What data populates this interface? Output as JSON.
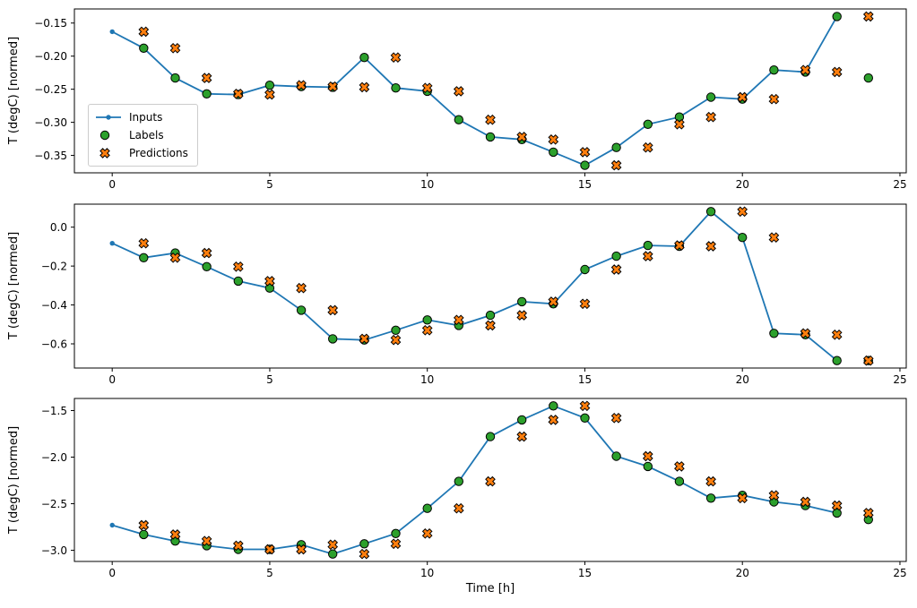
{
  "figure": {
    "xlabel": "Time [h]",
    "legend": {
      "position": "subplot-1 lower left",
      "items": [
        {
          "label": "Inputs",
          "marker": "line-with-dot"
        },
        {
          "label": "Labels",
          "marker": "circle"
        },
        {
          "label": "Predictions",
          "marker": "X"
        }
      ]
    },
    "colors": {
      "inputs": "#1f77b4",
      "labels": "#2ca02c",
      "predictions": "#ff7f0e",
      "edge": "#000000"
    }
  },
  "chart_data": [
    {
      "type": "line+scatter",
      "ylabel": "T (degC) [normed]",
      "xlim": [
        -1.2,
        25.2
      ],
      "ylim": [
        -0.3763,
        -0.1287
      ],
      "x_ticks": [
        0,
        5,
        10,
        15,
        20,
        25
      ],
      "x_tick_labels": [
        "0",
        "5",
        "10",
        "15",
        "20",
        "25"
      ],
      "y_ticks": [
        -0.15,
        -0.2,
        -0.25,
        -0.3,
        -0.35
      ],
      "y_tick_labels": [
        "−0.15",
        "−0.20",
        "−0.25",
        "−0.30",
        "−0.35"
      ],
      "grid": false,
      "series": [
        {
          "name": "Inputs",
          "marker": "point",
          "x": [
            0,
            1,
            2,
            3,
            4,
            5,
            6,
            7,
            8,
            9,
            10,
            11,
            12,
            13,
            14,
            15,
            16,
            17,
            18,
            19,
            20,
            21,
            22,
            23
          ],
          "y": [
            -0.163,
            -0.188,
            -0.233,
            -0.257,
            -0.258,
            -0.244,
            -0.246,
            -0.247,
            -0.202,
            -0.248,
            -0.253,
            -0.296,
            -0.322,
            -0.326,
            -0.345,
            -0.365,
            -0.338,
            -0.303,
            -0.292,
            -0.262,
            -0.265,
            -0.221,
            -0.224,
            -0.14
          ]
        },
        {
          "name": "Labels",
          "marker": "circle",
          "x": [
            1,
            2,
            3,
            4,
            5,
            6,
            7,
            8,
            9,
            10,
            11,
            12,
            13,
            14,
            15,
            16,
            17,
            18,
            19,
            20,
            21,
            22,
            23,
            24
          ],
          "y": [
            -0.188,
            -0.233,
            -0.257,
            -0.258,
            -0.244,
            -0.246,
            -0.247,
            -0.202,
            -0.248,
            -0.253,
            -0.296,
            -0.322,
            -0.326,
            -0.345,
            -0.365,
            -0.338,
            -0.303,
            -0.292,
            -0.262,
            -0.265,
            -0.221,
            -0.224,
            -0.14,
            -0.233
          ]
        },
        {
          "name": "Predictions",
          "marker": "X",
          "x": [
            1,
            2,
            3,
            4,
            5,
            6,
            7,
            8,
            9,
            10,
            11,
            12,
            13,
            14,
            15,
            16,
            17,
            18,
            19,
            20,
            21,
            22,
            23,
            24
          ],
          "y": [
            -0.163,
            -0.188,
            -0.233,
            -0.257,
            -0.258,
            -0.244,
            -0.246,
            -0.247,
            -0.202,
            -0.248,
            -0.253,
            -0.296,
            -0.322,
            -0.326,
            -0.345,
            -0.365,
            -0.338,
            -0.303,
            -0.292,
            -0.262,
            -0.265,
            -0.221,
            -0.224,
            -0.14
          ]
        }
      ]
    },
    {
      "type": "line+scatter",
      "ylabel": "T (degC) [normed]",
      "xlim": [
        -1.2,
        25.2
      ],
      "ylim": [
        -0.7243,
        0.1183
      ],
      "x_ticks": [
        0,
        5,
        10,
        15,
        20,
        25
      ],
      "x_tick_labels": [
        "0",
        "5",
        "10",
        "15",
        "20",
        "25"
      ],
      "y_ticks": [
        0.0,
        -0.2,
        -0.4,
        -0.6
      ],
      "y_tick_labels": [
        "0.0",
        "−0.2",
        "−0.4",
        "−0.6"
      ],
      "grid": false,
      "series": [
        {
          "name": "Inputs",
          "marker": "point",
          "x": [
            0,
            1,
            2,
            3,
            4,
            5,
            6,
            7,
            8,
            9,
            10,
            11,
            12,
            13,
            14,
            15,
            16,
            17,
            18,
            19,
            20,
            21,
            22,
            23
          ],
          "y": [
            -0.083,
            -0.157,
            -0.133,
            -0.203,
            -0.277,
            -0.313,
            -0.427,
            -0.574,
            -0.58,
            -0.53,
            -0.477,
            -0.505,
            -0.453,
            -0.383,
            -0.394,
            -0.218,
            -0.149,
            -0.094,
            -0.098,
            0.08,
            -0.053,
            -0.546,
            -0.553,
            -0.686
          ]
        },
        {
          "name": "Labels",
          "marker": "circle",
          "x": [
            1,
            2,
            3,
            4,
            5,
            6,
            7,
            8,
            9,
            10,
            11,
            12,
            13,
            14,
            15,
            16,
            17,
            18,
            19,
            20,
            21,
            22,
            23,
            24
          ],
          "y": [
            -0.157,
            -0.133,
            -0.203,
            -0.277,
            -0.313,
            -0.427,
            -0.574,
            -0.58,
            -0.53,
            -0.477,
            -0.505,
            -0.453,
            -0.383,
            -0.394,
            -0.218,
            -0.149,
            -0.094,
            -0.098,
            0.08,
            -0.053,
            -0.546,
            -0.553,
            -0.686,
            -0.686
          ]
        },
        {
          "name": "Predictions",
          "marker": "X",
          "x": [
            1,
            2,
            3,
            4,
            5,
            6,
            7,
            8,
            9,
            10,
            11,
            12,
            13,
            14,
            15,
            16,
            17,
            18,
            19,
            20,
            21,
            22,
            23,
            24
          ],
          "y": [
            -0.083,
            -0.157,
            -0.133,
            -0.203,
            -0.277,
            -0.313,
            -0.427,
            -0.574,
            -0.58,
            -0.53,
            -0.477,
            -0.505,
            -0.453,
            -0.383,
            -0.394,
            -0.218,
            -0.149,
            -0.094,
            -0.098,
            0.08,
            -0.053,
            -0.546,
            -0.553,
            -0.686
          ]
        }
      ]
    },
    {
      "type": "line+scatter",
      "ylabel": "T (degC) [normed]",
      "xlabel": "Time [h]",
      "xlim": [
        -1.2,
        25.2
      ],
      "ylim": [
        -3.1195,
        -1.3705
      ],
      "x_ticks": [
        0,
        5,
        10,
        15,
        20,
        25
      ],
      "x_tick_labels": [
        "0",
        "5",
        "10",
        "15",
        "20",
        "25"
      ],
      "y_ticks": [
        -1.5,
        -2.0,
        -2.5,
        -3.0
      ],
      "y_tick_labels": [
        "−1.5",
        "−2.0",
        "−2.5",
        "−3.0"
      ],
      "grid": false,
      "series": [
        {
          "name": "Inputs",
          "marker": "point",
          "x": [
            0,
            1,
            2,
            3,
            4,
            5,
            6,
            7,
            8,
            9,
            10,
            11,
            12,
            13,
            14,
            15,
            16,
            17,
            18,
            19,
            20,
            21,
            22,
            23
          ],
          "y": [
            -2.73,
            -2.83,
            -2.9,
            -2.95,
            -2.99,
            -2.99,
            -2.94,
            -3.04,
            -2.93,
            -2.82,
            -2.55,
            -2.26,
            -1.78,
            -1.6,
            -1.45,
            -1.58,
            -1.99,
            -2.1,
            -2.26,
            -2.44,
            -2.41,
            -2.48,
            -2.52,
            -2.6
          ]
        },
        {
          "name": "Labels",
          "marker": "circle",
          "x": [
            1,
            2,
            3,
            4,
            5,
            6,
            7,
            8,
            9,
            10,
            11,
            12,
            13,
            14,
            15,
            16,
            17,
            18,
            19,
            20,
            21,
            22,
            23,
            24
          ],
          "y": [
            -2.83,
            -2.9,
            -2.95,
            -2.99,
            -2.99,
            -2.94,
            -3.04,
            -2.93,
            -2.82,
            -2.55,
            -2.26,
            -1.78,
            -1.6,
            -1.45,
            -1.58,
            -1.99,
            -2.1,
            -2.26,
            -2.44,
            -2.41,
            -2.48,
            -2.52,
            -2.6,
            -2.67
          ]
        },
        {
          "name": "Predictions",
          "marker": "X",
          "x": [
            1,
            2,
            3,
            4,
            5,
            6,
            7,
            8,
            9,
            10,
            11,
            12,
            13,
            14,
            15,
            16,
            17,
            18,
            19,
            20,
            21,
            22,
            23,
            24
          ],
          "y": [
            -2.73,
            -2.83,
            -2.9,
            -2.95,
            -2.99,
            -2.99,
            -2.94,
            -3.04,
            -2.93,
            -2.82,
            -2.55,
            -2.26,
            -1.78,
            -1.6,
            -1.45,
            -1.58,
            -1.99,
            -2.1,
            -2.26,
            -2.44,
            -2.41,
            -2.48,
            -2.52,
            -2.6
          ]
        }
      ]
    }
  ]
}
